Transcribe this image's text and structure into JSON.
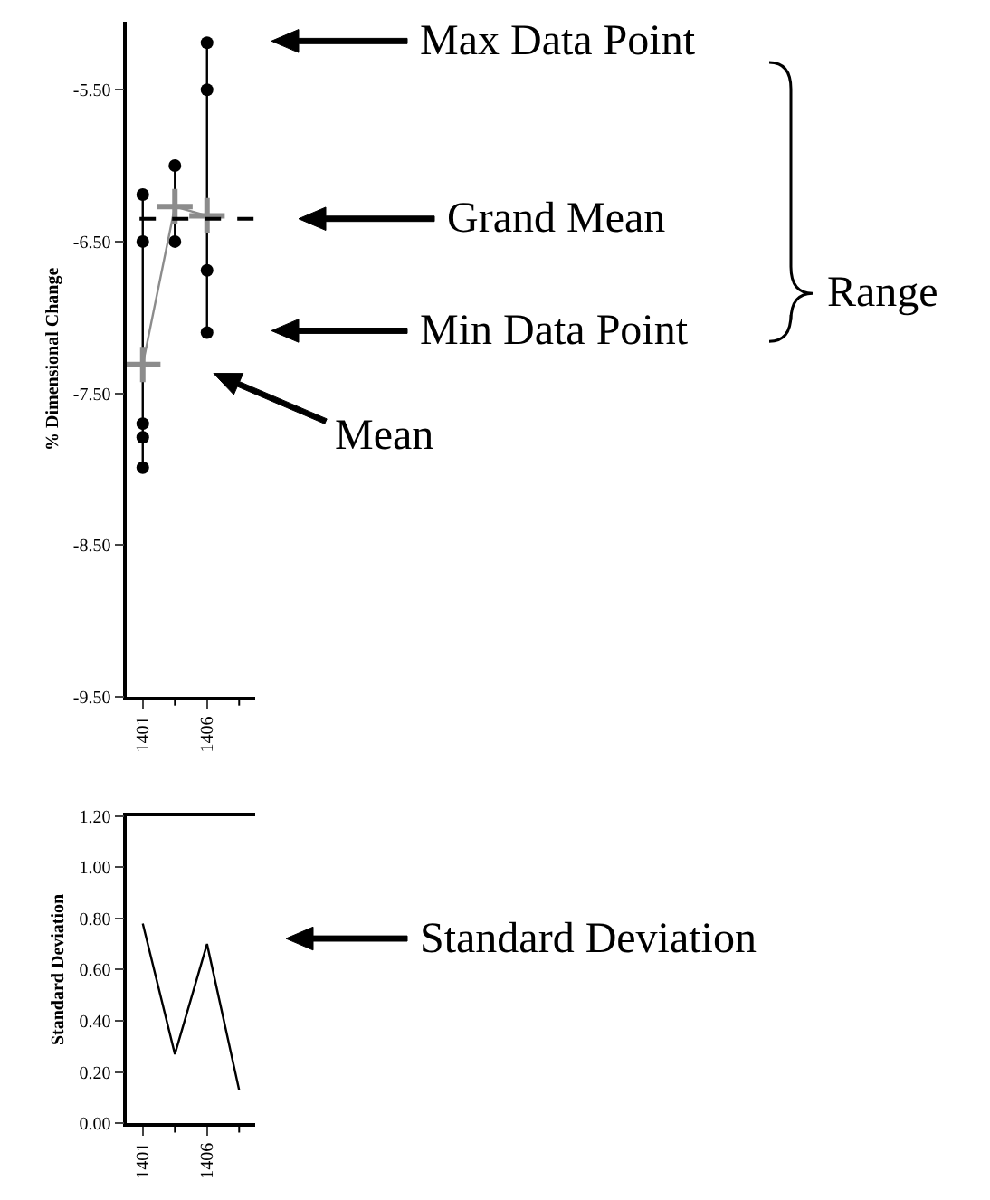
{
  "chart_data": [
    {
      "type": "scatter",
      "ylabel": "% Dimensional Change",
      "categories": [
        "1401",
        null,
        "1406",
        null
      ],
      "marker": "circle",
      "series": [
        {
          "color": "#000000",
          "values": [
            -6.19,
            -6.0,
            -5.19,
            null
          ]
        },
        {
          "color": "#000000",
          "values": [
            -6.5,
            -6.5,
            -5.5,
            null
          ]
        },
        {
          "color": "#000000",
          "values": [
            -7.7,
            null,
            -6.69,
            null
          ]
        },
        {
          "color": "#000000",
          "values": [
            -7.79,
            null,
            -7.1,
            null
          ]
        },
        {
          "color": "#000000",
          "values": [
            -7.99,
            null,
            null,
            null
          ]
        },
        {
          "type": "line",
          "marker": "cross",
          "color": "#8c8c8c",
          "values": [
            -7.31,
            -6.27,
            -6.33,
            null
          ]
        }
      ],
      "ylim": [
        -9.5,
        -5.05
      ],
      "yticks": [
        {
          "value": -9.5,
          "label": "-9.50"
        },
        {
          "value": -8.5,
          "label": "-8.50"
        },
        {
          "value": -7.5,
          "label": "-7.50"
        },
        {
          "value": -6.5,
          "label": "-6.50"
        },
        {
          "value": -5.5,
          "label": "-5.50"
        }
      ],
      "ref_lines": [
        {
          "axis": "y",
          "value": -6.35,
          "color": "#000000",
          "line_style": "dashed"
        }
      ],
      "annotations": [
        "Max Data Point",
        "Grand Mean",
        "Min Data Point",
        "Mean",
        "Range"
      ],
      "grid": false
    },
    {
      "type": "line",
      "ylabel": "Standard Deviation",
      "categories": [
        "1401",
        null,
        "1406",
        null
      ],
      "series": [
        {
          "color": "#000000",
          "values": [
            0.78,
            0.27,
            0.7,
            0.13
          ]
        }
      ],
      "ylim": [
        0,
        1.2
      ],
      "yticks": [
        {
          "value": 0,
          "label": "0.00"
        },
        {
          "value": 0.2,
          "label": "0.20"
        },
        {
          "value": 0.4,
          "label": "0.40"
        },
        {
          "value": 0.6,
          "label": "0.60"
        },
        {
          "value": 0.8,
          "label": "0.80"
        },
        {
          "value": 1.0,
          "label": "1.00"
        },
        {
          "value": 1.2,
          "label": "1.20"
        }
      ],
      "annotations": [
        "Standard Deviation"
      ],
      "grid": false
    }
  ]
}
